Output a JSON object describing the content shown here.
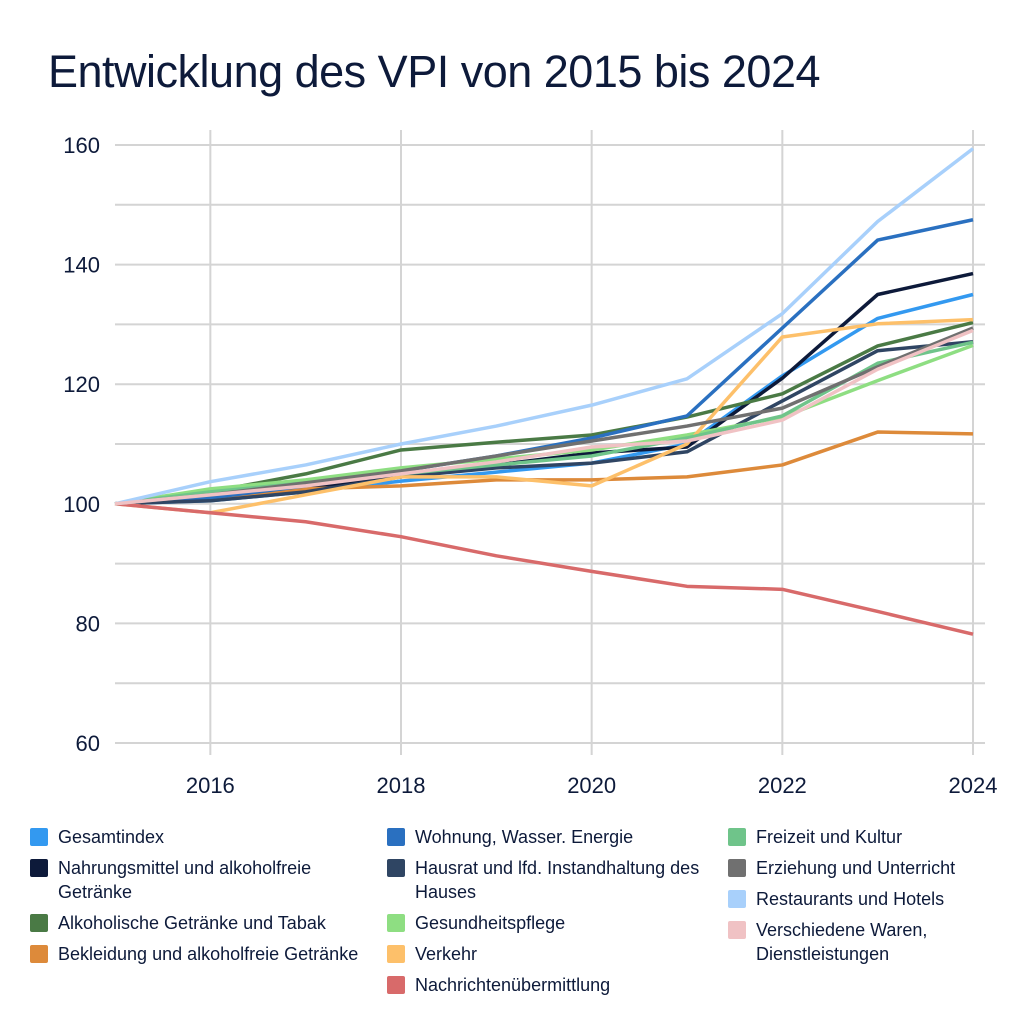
{
  "chart_data": {
    "type": "line",
    "title": "Entwicklung des VPI von 2015 bis 2024",
    "x": [
      2015,
      2016,
      2017,
      2018,
      2019,
      2020,
      2021,
      2022,
      2023,
      2024
    ],
    "xticks": [
      "2016",
      "2018",
      "2020",
      "2022",
      "2024"
    ],
    "yticks": [
      "60",
      "80",
      "100",
      "120",
      "140",
      "160"
    ],
    "xlim": [
      2015,
      2024
    ],
    "ylim": [
      60,
      160
    ],
    "grid": true,
    "legend_position": "bottom",
    "series": [
      {
        "name": "Gesamtindex",
        "color": "#3399f0",
        "values": [
          100,
          100.5,
          102,
          103.8,
          105.3,
          106.8,
          110,
          121.4,
          131,
          135
        ]
      },
      {
        "name": "Nahrungsmittel und alkoholfreie Getränke",
        "color": "#0d1a3a",
        "values": [
          100,
          101,
          102.5,
          104.5,
          106.5,
          108.5,
          109.5,
          121,
          135,
          138.5
        ]
      },
      {
        "name": "Alkoholische Getränke und Tabak",
        "color": "#4a7a45",
        "values": [
          100,
          102,
          105,
          109,
          110.3,
          111.5,
          114.5,
          118.4,
          126.4,
          130.3
        ]
      },
      {
        "name": "Bekleidung und alkoholfreie Getränke",
        "color": "#dd8a3a",
        "values": [
          100,
          101,
          102.5,
          103,
          104,
          104,
          104.5,
          106.5,
          112,
          111.7
        ]
      },
      {
        "name": "Wohnung, Wasser. Energie",
        "color": "#2a70c0",
        "values": [
          100,
          101,
          103,
          105.5,
          108,
          111,
          114.7,
          129.4,
          144.1,
          147.5
        ]
      },
      {
        "name": "Hausrat und lfd. Instandhaltung des Hauses",
        "color": "#2f4563",
        "values": [
          100,
          100.5,
          102,
          104.5,
          106,
          106.8,
          108.7,
          117.2,
          125.6,
          127.1
        ]
      },
      {
        "name": "Gesundheitspflege",
        "color": "#8ede82",
        "values": [
          100,
          102.5,
          104,
          106,
          107.5,
          109,
          111.5,
          114.5,
          120.6,
          126.5
        ]
      },
      {
        "name": "Verkehr",
        "color": "#fdc06a",
        "values": [
          100,
          98.5,
          101.5,
          104.5,
          104.5,
          103,
          110,
          127.9,
          130.1,
          130.8
        ]
      },
      {
        "name": "Nachrichtenübermittlung",
        "color": "#d86a6a",
        "values": [
          100,
          98.5,
          97,
          94.5,
          91.3,
          88.7,
          86.2,
          85.7,
          82,
          78.2
        ]
      },
      {
        "name": "Freizeit und Kultur",
        "color": "#6fc48a",
        "values": [
          100,
          102,
          103.5,
          105,
          106.5,
          108,
          111,
          114.7,
          123.5,
          127
        ]
      },
      {
        "name": "Erziehung und Unterricht",
        "color": "#707070",
        "values": [
          100,
          101.5,
          103.5,
          105.5,
          108,
          110.5,
          113,
          116,
          122.9,
          129.4
        ]
      },
      {
        "name": "Restaurants und Hotels",
        "color": "#a8d0fb",
        "values": [
          100,
          103.7,
          106.5,
          110,
          113,
          116.5,
          120.9,
          131.8,
          147.2,
          159.4
        ]
      },
      {
        "name": "Verschiedene Waren, Dienstleistungen",
        "color": "#f0c2c4",
        "values": [
          100,
          101.5,
          103,
          105,
          107,
          109.5,
          110.5,
          114,
          122.5,
          129
        ]
      }
    ]
  }
}
